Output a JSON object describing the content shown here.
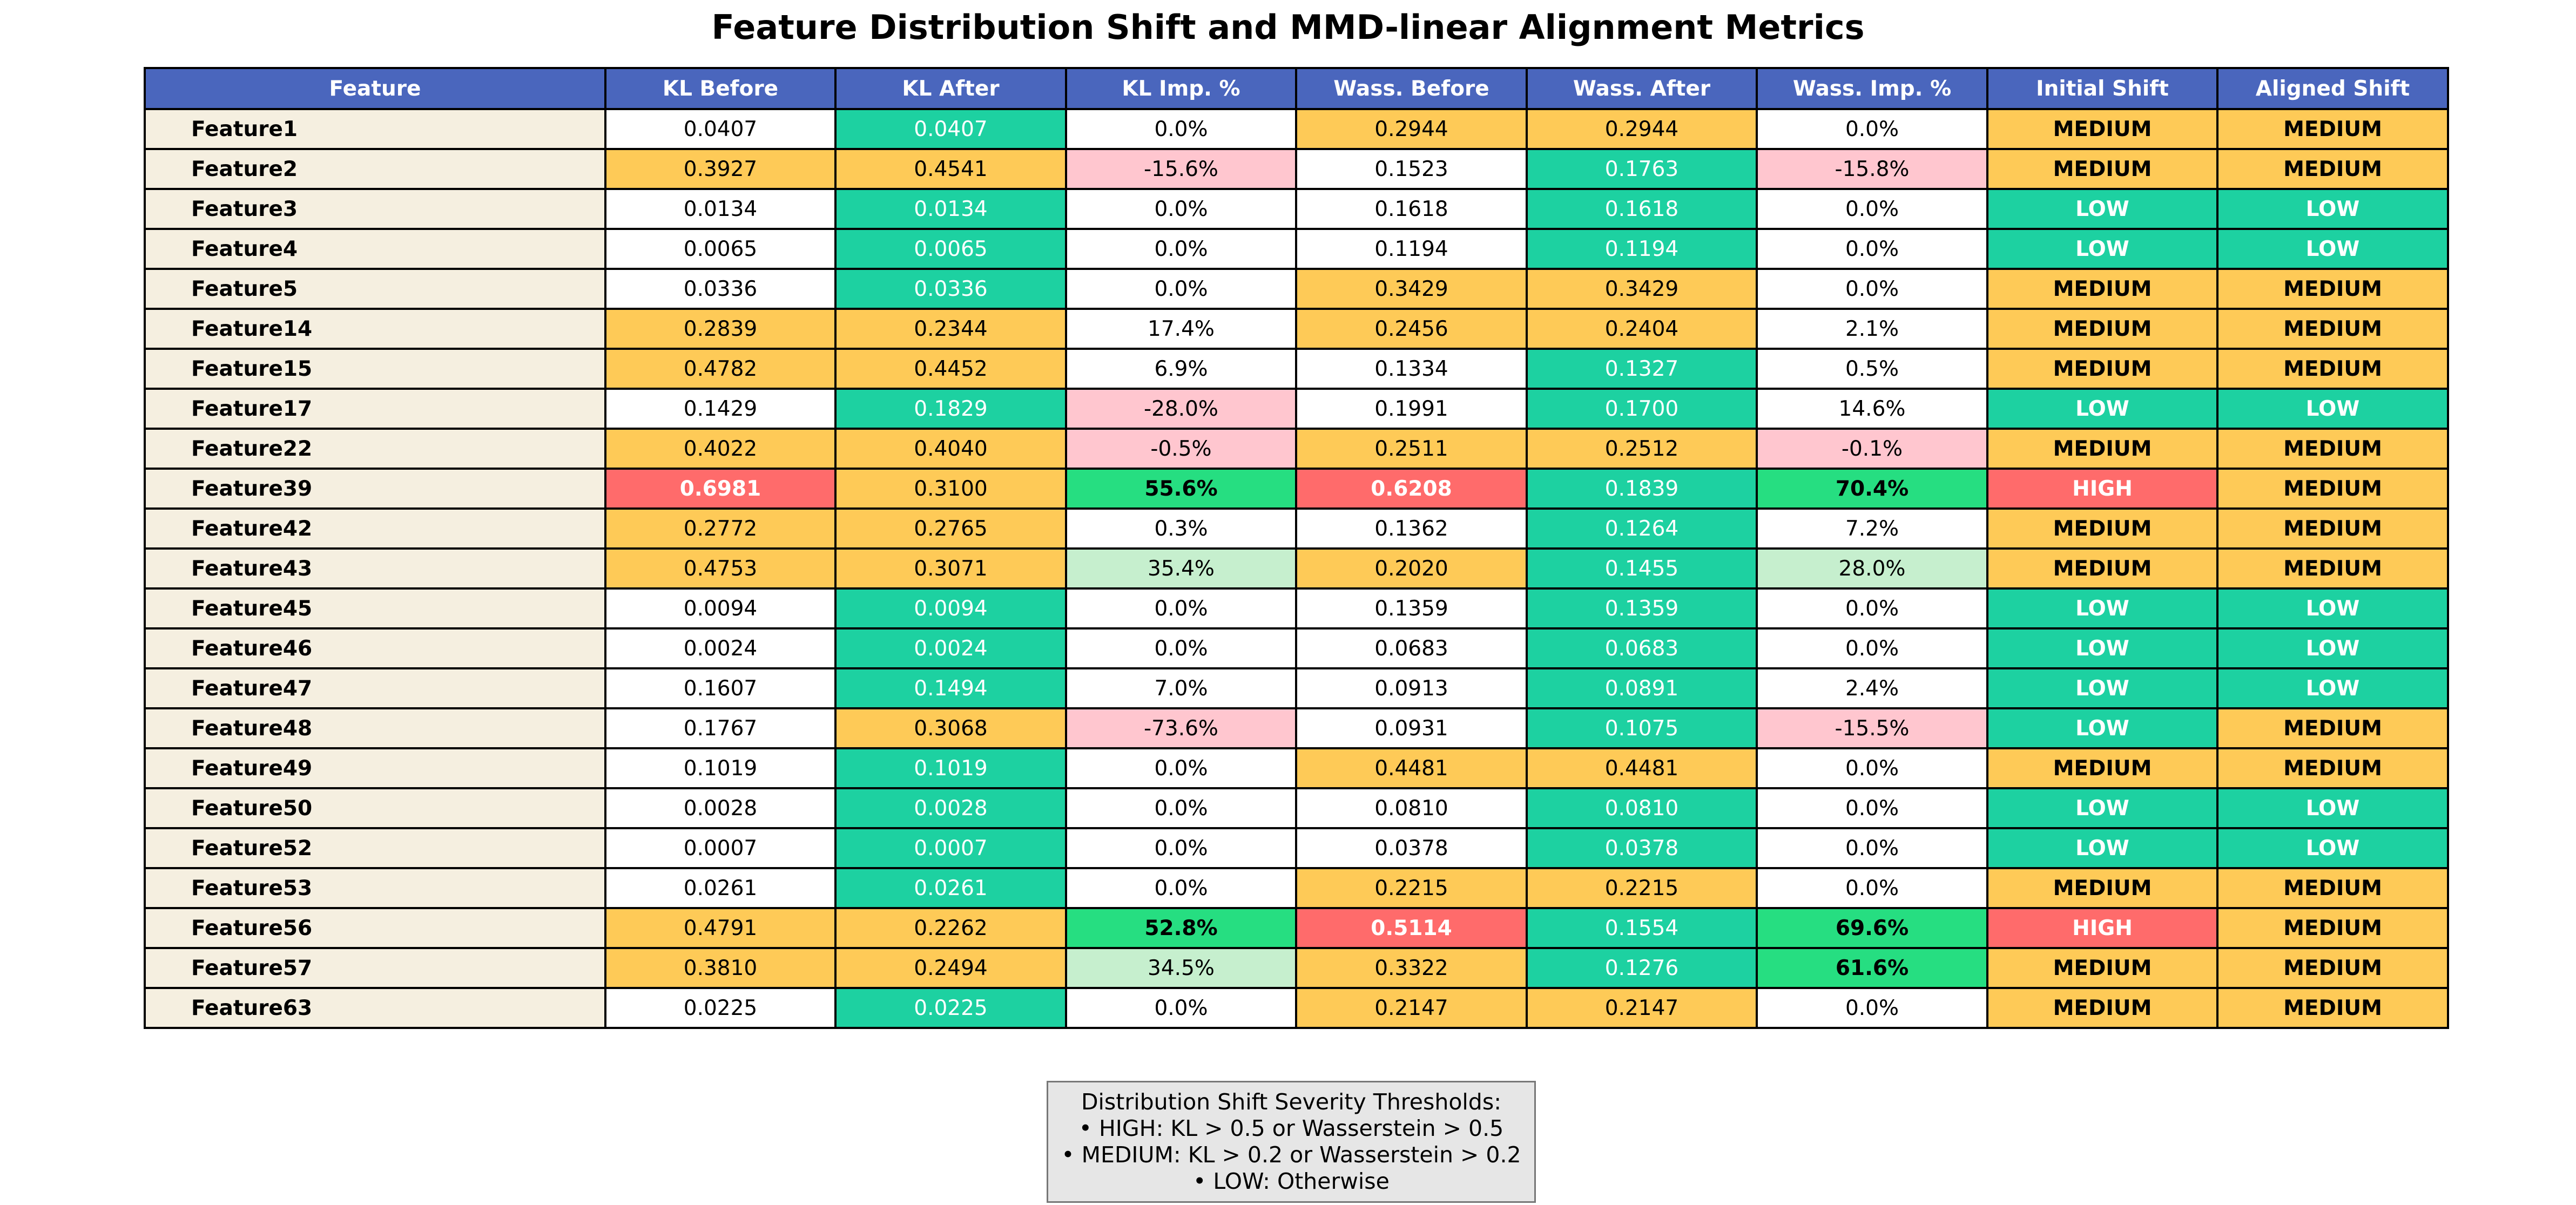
{
  "chart_data": {
    "type": "table",
    "title": "Feature Distribution Shift and MMD-linear Alignment Metrics",
    "columns": [
      "Feature",
      "KL Before",
      "KL After",
      "KL Imp. %",
      "Wass. Before",
      "Wass. After",
      "Wass. Imp. %",
      "Initial Shift",
      "Aligned Shift"
    ],
    "rows": [
      {
        "feature": "Feature1",
        "kl_before": "0.0407",
        "kl_after": "0.0407",
        "kl_imp": "0.0%",
        "wass_before": "0.2944",
        "wass_after": "0.2944",
        "wass_imp": "0.0%",
        "initial_shift": "MEDIUM",
        "aligned_shift": "MEDIUM"
      },
      {
        "feature": "Feature2",
        "kl_before": "0.3927",
        "kl_after": "0.4541",
        "kl_imp": "-15.6%",
        "wass_before": "0.1523",
        "wass_after": "0.1763",
        "wass_imp": "-15.8%",
        "initial_shift": "MEDIUM",
        "aligned_shift": "MEDIUM"
      },
      {
        "feature": "Feature3",
        "kl_before": "0.0134",
        "kl_after": "0.0134",
        "kl_imp": "0.0%",
        "wass_before": "0.1618",
        "wass_after": "0.1618",
        "wass_imp": "0.0%",
        "initial_shift": "LOW",
        "aligned_shift": "LOW"
      },
      {
        "feature": "Feature4",
        "kl_before": "0.0065",
        "kl_after": "0.0065",
        "kl_imp": "0.0%",
        "wass_before": "0.1194",
        "wass_after": "0.1194",
        "wass_imp": "0.0%",
        "initial_shift": "LOW",
        "aligned_shift": "LOW"
      },
      {
        "feature": "Feature5",
        "kl_before": "0.0336",
        "kl_after": "0.0336",
        "kl_imp": "0.0%",
        "wass_before": "0.3429",
        "wass_after": "0.3429",
        "wass_imp": "0.0%",
        "initial_shift": "MEDIUM",
        "aligned_shift": "MEDIUM"
      },
      {
        "feature": "Feature14",
        "kl_before": "0.2839",
        "kl_after": "0.2344",
        "kl_imp": "17.4%",
        "wass_before": "0.2456",
        "wass_after": "0.2404",
        "wass_imp": "2.1%",
        "initial_shift": "MEDIUM",
        "aligned_shift": "MEDIUM"
      },
      {
        "feature": "Feature15",
        "kl_before": "0.4782",
        "kl_after": "0.4452",
        "kl_imp": "6.9%",
        "wass_before": "0.1334",
        "wass_after": "0.1327",
        "wass_imp": "0.5%",
        "initial_shift": "MEDIUM",
        "aligned_shift": "MEDIUM"
      },
      {
        "feature": "Feature17",
        "kl_before": "0.1429",
        "kl_after": "0.1829",
        "kl_imp": "-28.0%",
        "wass_before": "0.1991",
        "wass_after": "0.1700",
        "wass_imp": "14.6%",
        "initial_shift": "LOW",
        "aligned_shift": "LOW"
      },
      {
        "feature": "Feature22",
        "kl_before": "0.4022",
        "kl_after": "0.4040",
        "kl_imp": "-0.5%",
        "wass_before": "0.2511",
        "wass_after": "0.2512",
        "wass_imp": "-0.1%",
        "initial_shift": "MEDIUM",
        "aligned_shift": "MEDIUM"
      },
      {
        "feature": "Feature39",
        "kl_before": "0.6981",
        "kl_after": "0.3100",
        "kl_imp": "55.6%",
        "wass_before": "0.6208",
        "wass_after": "0.1839",
        "wass_imp": "70.4%",
        "initial_shift": "HIGH",
        "aligned_shift": "MEDIUM"
      },
      {
        "feature": "Feature42",
        "kl_before": "0.2772",
        "kl_after": "0.2765",
        "kl_imp": "0.3%",
        "wass_before": "0.1362",
        "wass_after": "0.1264",
        "wass_imp": "7.2%",
        "initial_shift": "MEDIUM",
        "aligned_shift": "MEDIUM"
      },
      {
        "feature": "Feature43",
        "kl_before": "0.4753",
        "kl_after": "0.3071",
        "kl_imp": "35.4%",
        "wass_before": "0.2020",
        "wass_after": "0.1455",
        "wass_imp": "28.0%",
        "initial_shift": "MEDIUM",
        "aligned_shift": "MEDIUM"
      },
      {
        "feature": "Feature45",
        "kl_before": "0.0094",
        "kl_after": "0.0094",
        "kl_imp": "0.0%",
        "wass_before": "0.1359",
        "wass_after": "0.1359",
        "wass_imp": "0.0%",
        "initial_shift": "LOW",
        "aligned_shift": "LOW"
      },
      {
        "feature": "Feature46",
        "kl_before": "0.0024",
        "kl_after": "0.0024",
        "kl_imp": "0.0%",
        "wass_before": "0.0683",
        "wass_after": "0.0683",
        "wass_imp": "0.0%",
        "initial_shift": "LOW",
        "aligned_shift": "LOW"
      },
      {
        "feature": "Feature47",
        "kl_before": "0.1607",
        "kl_after": "0.1494",
        "kl_imp": "7.0%",
        "wass_before": "0.0913",
        "wass_after": "0.0891",
        "wass_imp": "2.4%",
        "initial_shift": "LOW",
        "aligned_shift": "LOW"
      },
      {
        "feature": "Feature48",
        "kl_before": "0.1767",
        "kl_after": "0.3068",
        "kl_imp": "-73.6%",
        "wass_before": "0.0931",
        "wass_after": "0.1075",
        "wass_imp": "-15.5%",
        "initial_shift": "LOW",
        "aligned_shift": "MEDIUM"
      },
      {
        "feature": "Feature49",
        "kl_before": "0.1019",
        "kl_after": "0.1019",
        "kl_imp": "0.0%",
        "wass_before": "0.4481",
        "wass_after": "0.4481",
        "wass_imp": "0.0%",
        "initial_shift": "MEDIUM",
        "aligned_shift": "MEDIUM"
      },
      {
        "feature": "Feature50",
        "kl_before": "0.0028",
        "kl_after": "0.0028",
        "kl_imp": "0.0%",
        "wass_before": "0.0810",
        "wass_after": "0.0810",
        "wass_imp": "0.0%",
        "initial_shift": "LOW",
        "aligned_shift": "LOW"
      },
      {
        "feature": "Feature52",
        "kl_before": "0.0007",
        "kl_after": "0.0007",
        "kl_imp": "0.0%",
        "wass_before": "0.0378",
        "wass_after": "0.0378",
        "wass_imp": "0.0%",
        "initial_shift": "LOW",
        "aligned_shift": "LOW"
      },
      {
        "feature": "Feature53",
        "kl_before": "0.0261",
        "kl_after": "0.0261",
        "kl_imp": "0.0%",
        "wass_before": "0.2215",
        "wass_after": "0.2215",
        "wass_imp": "0.0%",
        "initial_shift": "MEDIUM",
        "aligned_shift": "MEDIUM"
      },
      {
        "feature": "Feature56",
        "kl_before": "0.4791",
        "kl_after": "0.2262",
        "kl_imp": "52.8%",
        "wass_before": "0.5114",
        "wass_after": "0.1554",
        "wass_imp": "69.6%",
        "initial_shift": "HIGH",
        "aligned_shift": "MEDIUM"
      },
      {
        "feature": "Feature57",
        "kl_before": "0.3810",
        "kl_after": "0.2494",
        "kl_imp": "34.5%",
        "wass_before": "0.3322",
        "wass_after": "0.1276",
        "wass_imp": "61.6%",
        "initial_shift": "MEDIUM",
        "aligned_shift": "MEDIUM"
      },
      {
        "feature": "Feature63",
        "kl_before": "0.0225",
        "kl_after": "0.0225",
        "kl_imp": "0.0%",
        "wass_before": "0.2147",
        "wass_after": "0.2147",
        "wass_imp": "0.0%",
        "initial_shift": "MEDIUM",
        "aligned_shift": "MEDIUM"
      }
    ],
    "legend": {
      "title": "Distribution Shift Severity Thresholds:",
      "lines": [
        "• HIGH: KL > 0.5 or Wasserstein > 0.5",
        "• MEDIUM: KL > 0.2 or Wasserstein > 0.2",
        "• LOW: Otherwise"
      ]
    }
  },
  "colors": {
    "header": "#4a66bd",
    "feature_cell": "#f5efe0",
    "low": "#1dd1a1",
    "medium": "#feca57",
    "high": "#ff6b6b",
    "worsened": "#ffc6cf",
    "improved_moderate": "#c6efce",
    "improved_strong": "#26de81",
    "neutral": "#ffffff",
    "legend_box": "#e6e6e6"
  }
}
